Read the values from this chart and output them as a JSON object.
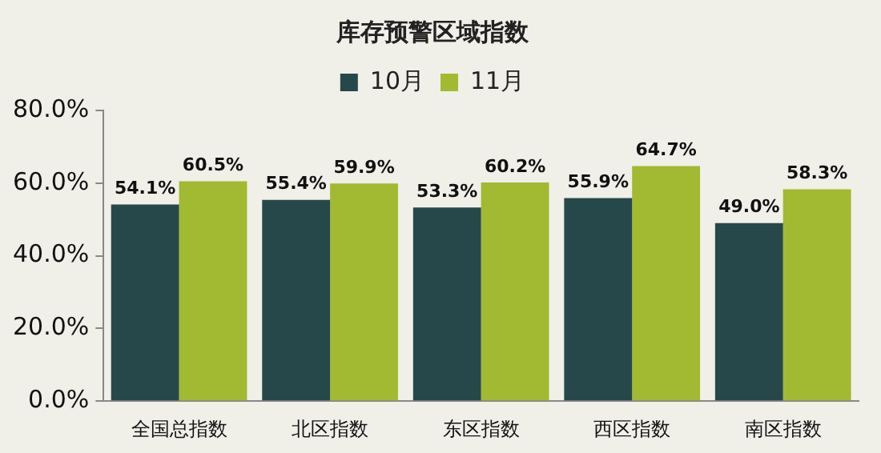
{
  "chart_data": {
    "type": "bar",
    "title": "库存预警区域指数",
    "categories": [
      "全国总指数",
      "北区指数",
      "东区指数",
      "西区指数",
      "南区指数"
    ],
    "series": [
      {
        "name": "10月",
        "color": "#27484a",
        "values": [
          54.1,
          55.4,
          53.3,
          55.9,
          49.0
        ],
        "value_labels": [
          "54.1%",
          "55.4%",
          "53.3%",
          "55.9%",
          "49.0%"
        ]
      },
      {
        "name": "11月",
        "color": "#a2b932",
        "values": [
          60.5,
          59.9,
          60.2,
          64.7,
          58.3
        ],
        "value_labels": [
          "60.5%",
          "59.9%",
          "60.2%",
          "64.7%",
          "58.3%"
        ]
      }
    ],
    "ylim": [
      0,
      80
    ],
    "yticks": [
      {
        "value": 0,
        "label": "0.0%"
      },
      {
        "value": 20,
        "label": "20.0%"
      },
      {
        "value": 40,
        "label": "40.0%"
      },
      {
        "value": 60,
        "label": "60.0%"
      },
      {
        "value": 80,
        "label": "80.0%"
      }
    ],
    "grid": false,
    "legend": "top"
  }
}
